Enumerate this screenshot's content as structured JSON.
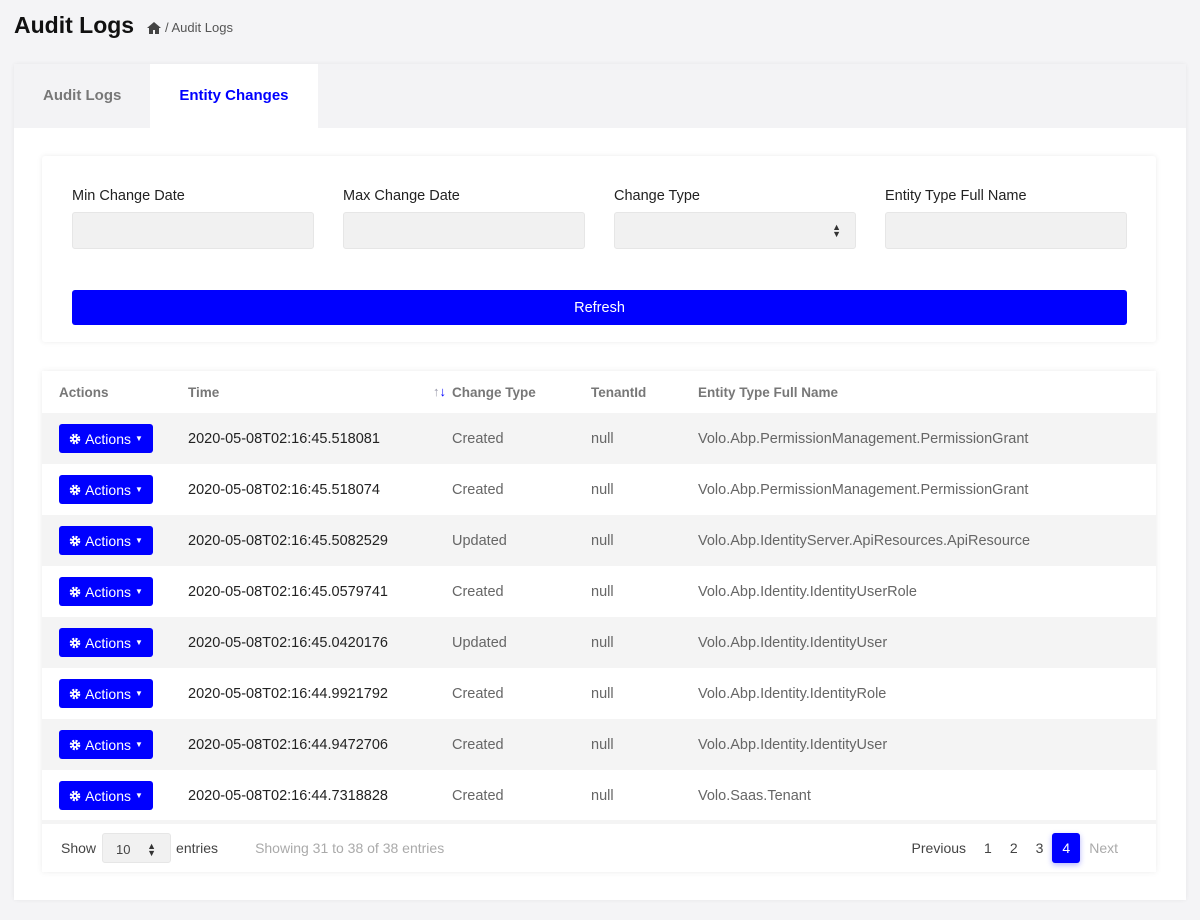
{
  "header": {
    "title": "Audit Logs",
    "breadcrumb": "/ Audit Logs"
  },
  "tabs": [
    {
      "label": "Audit Logs",
      "active": false
    },
    {
      "label": "Entity Changes",
      "active": true
    }
  ],
  "filters": {
    "min_date_label": "Min Change Date",
    "max_date_label": "Max Change Date",
    "change_type_label": "Change Type",
    "entity_type_label": "Entity Type Full Name",
    "refresh_label": "Refresh"
  },
  "table": {
    "headers": [
      "Actions",
      "Time",
      "Change Type",
      "TenantId",
      "Entity Type Full Name"
    ],
    "action_label": "Actions",
    "rows": [
      [
        "2020-05-08T02:16:45.518081",
        "Created",
        "null",
        "Volo.Abp.PermissionManagement.PermissionGrant"
      ],
      [
        "2020-05-08T02:16:45.518074",
        "Created",
        "null",
        "Volo.Abp.PermissionManagement.PermissionGrant"
      ],
      [
        "2020-05-08T02:16:45.5082529",
        "Updated",
        "null",
        "Volo.Abp.IdentityServer.ApiResources.ApiResource"
      ],
      [
        "2020-05-08T02:16:45.0579741",
        "Created",
        "null",
        "Volo.Abp.Identity.IdentityUserRole"
      ],
      [
        "2020-05-08T02:16:45.0420176",
        "Updated",
        "null",
        "Volo.Abp.Identity.IdentityUser"
      ],
      [
        "2020-05-08T02:16:44.9921792",
        "Created",
        "null",
        "Volo.Abp.Identity.IdentityRole"
      ],
      [
        "2020-05-08T02:16:44.9472706",
        "Created",
        "null",
        "Volo.Abp.Identity.IdentityUser"
      ],
      [
        "2020-05-08T02:16:44.7318828",
        "Created",
        "null",
        "Volo.Saas.Tenant"
      ]
    ]
  },
  "footer": {
    "show": "Show",
    "page_size": "10",
    "entries": "entries",
    "info": "Showing 31 to 38 of 38 entries",
    "previous": "Previous",
    "pages": [
      "1",
      "2",
      "3",
      "4"
    ],
    "current_page": "4",
    "next": "Next"
  },
  "colors": {
    "accent": "#0000ff"
  }
}
